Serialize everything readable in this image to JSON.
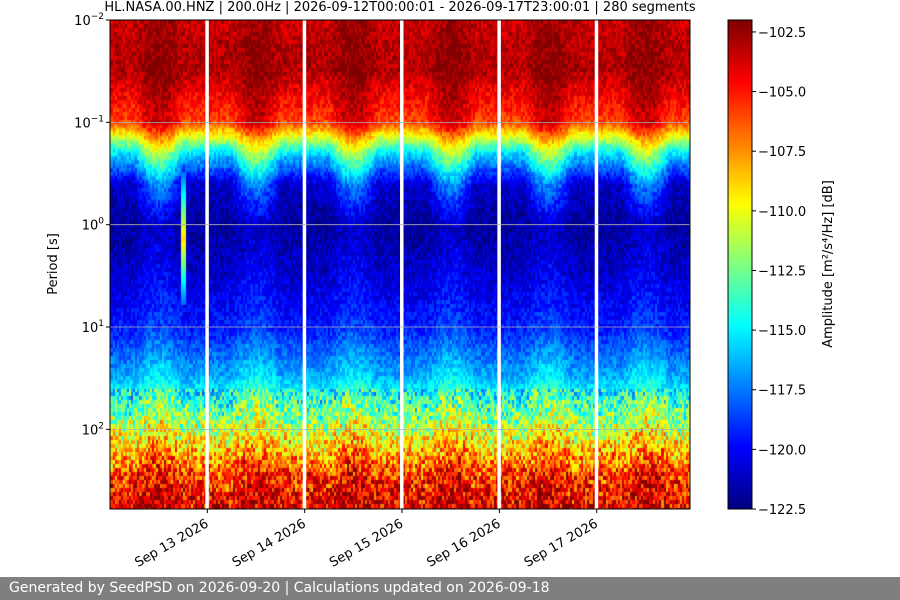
{
  "chart_data": {
    "type": "heatmap",
    "title": "HL.NASA.00.HNZ | 200.0Hz | 2026-09-12T00:00:01 - 2026-09-17T23:00:01 | 280 segments",
    "ylabel": "Period [s]",
    "colorbar_label": "Amplitude [m²/s⁴/Hz] [dB]",
    "y_scale": "log",
    "y_inverted": true,
    "ylim": [
      0.01,
      600
    ],
    "y_ticks": [
      {
        "value": 0.01,
        "base": "10",
        "exp": "−2"
      },
      {
        "value": 0.1,
        "base": "10",
        "exp": "−1"
      },
      {
        "value": 1,
        "base": "10",
        "exp": "0"
      },
      {
        "value": 10,
        "base": "10",
        "exp": "1"
      },
      {
        "value": 100,
        "base": "10",
        "exp": "2"
      }
    ],
    "xlim": [
      "2026-09-12T00:00:01",
      "2026-09-17T23:00:01"
    ],
    "x_ticks": [
      "Sep 13 2026",
      "Sep 14 2026",
      "Sep 15 2026",
      "Sep 16 2026",
      "Sep 17 2026"
    ],
    "grid": true,
    "colormap": "jet",
    "clim": [
      -122.5,
      -102.0
    ],
    "colorbar_ticks": [
      "−102.5",
      "−105.0",
      "−107.5",
      "−110.0",
      "−112.5",
      "−115.0",
      "−117.5",
      "−120.0",
      "−122.5"
    ],
    "gaps": [
      "2026-09-13T00:00",
      "2026-09-14T00:00",
      "2026-09-15T00:00",
      "2026-09-16T00:00",
      "2026-09-17T00:00"
    ],
    "profile": [
      {
        "period": 0.01,
        "quiet": -103.5,
        "noisy": -102.5
      },
      {
        "period": 0.03,
        "quiet": -103.0,
        "noisy": -102.0
      },
      {
        "period": 0.1,
        "quiet": -106.0,
        "noisy": -103.5
      },
      {
        "period": 0.2,
        "quiet": -115.5,
        "noisy": -111.0
      },
      {
        "period": 0.4,
        "quiet": -121.0,
        "noisy": -117.0
      },
      {
        "period": 1.0,
        "quiet": -122.0,
        "noisy": -121.0
      },
      {
        "period": 3.0,
        "quiet": -121.0,
        "noisy": -120.0
      },
      {
        "period": 10,
        "quiet": -119.5,
        "noisy": -118.5
      },
      {
        "period": 30,
        "quiet": -116.5,
        "noisy": -115.0
      },
      {
        "period": 100,
        "quiet": -111.0,
        "noisy": -109.5
      },
      {
        "period": 300,
        "quiet": -105.5,
        "noisy": -104.0
      },
      {
        "period": 600,
        "quiet": -104.0,
        "noisy": -103.0
      }
    ],
    "event": {
      "time": "2026-09-12T18:00",
      "period_range": [
        0.3,
        6
      ],
      "peak_db": -109.0
    }
  },
  "footer": {
    "text": "Generated by SeedPSD on 2026-09-20 | Calculations updated on 2026-09-18"
  }
}
